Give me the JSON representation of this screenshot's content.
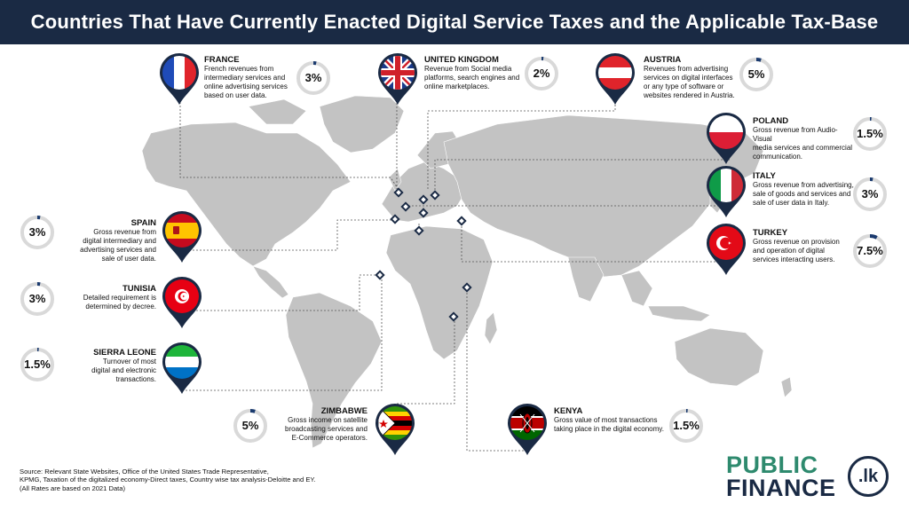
{
  "title": "Countries That Have Currently Enacted Digital Service Taxes and the Applicable Tax-Base",
  "countries": [
    {
      "name": "FRANCE",
      "desc": [
        "French revenues from",
        "intermediary services and",
        "online advertising services",
        "based on user data."
      ],
      "rate": "3%",
      "rate_value": 3
    },
    {
      "name": "UNITED KINGDOM",
      "desc": [
        "Revenue from Social media",
        "platforms, search engines and",
        "online marketplaces."
      ],
      "rate": "2%",
      "rate_value": 2
    },
    {
      "name": "AUSTRIA",
      "desc": [
        "Revenues from advertising",
        "services on digital interfaces",
        "or any type of software or",
        "websites rendered in Austria."
      ],
      "rate": "5%",
      "rate_value": 5
    },
    {
      "name": "POLAND",
      "desc": [
        "Gross revenue from Audio-Visual",
        "media services and commercial",
        "communication."
      ],
      "rate": "1.5%",
      "rate_value": 1.5
    },
    {
      "name": "ITALY",
      "desc": [
        "Gross revenue from advertising,",
        "sale of goods and services and",
        "sale of user data in Italy."
      ],
      "rate": "3%",
      "rate_value": 3
    },
    {
      "name": "TURKEY",
      "desc": [
        "Gross revenue on provision",
        "and operation of digital",
        "services interacting users."
      ],
      "rate": "7.5%",
      "rate_value": 7.5
    },
    {
      "name": "SPAIN",
      "desc": [
        "Gross revenue from",
        "digital intermediary and",
        "advertising services and",
        "sale of user data."
      ],
      "rate": "3%",
      "rate_value": 3
    },
    {
      "name": "TUNISIA",
      "desc": [
        "Detailed requirement is",
        "determined by decree."
      ],
      "rate": "3%",
      "rate_value": 3
    },
    {
      "name": "SIERRA LEONE",
      "desc": [
        "Turnover of most",
        "digital and electronic",
        "transactions."
      ],
      "rate": "1.5%",
      "rate_value": 1.5
    },
    {
      "name": "ZIMBABWE",
      "desc": [
        "Gross income on satellite",
        "broadcasting services and",
        "E-Commerce operators."
      ],
      "rate": "5%",
      "rate_value": 5
    },
    {
      "name": "KENYA",
      "desc": [
        "Gross value of most transactions",
        "taking place in the digital economy."
      ],
      "rate": "1.5%",
      "rate_value": 1.5
    }
  ],
  "source": [
    "Source: Relevant State Websites, Office of the United States Trade Representative,",
    "KPMG, Taxation of the digitalized economy-Direct taxes, Country wise tax analysis-Deloitte and EY.",
    "(All Rates are based on 2021 Data)"
  ],
  "logo": {
    "line1": "PUBLIC",
    "line2": "FINANCE",
    "badge": ".lk"
  },
  "colors": {
    "header": "#1a2a44",
    "ring_track": "#d9d9d9",
    "ring_fill": "#1a3a6e",
    "land": "#c3c3c3",
    "brand_green": "#2e8a6e"
  }
}
